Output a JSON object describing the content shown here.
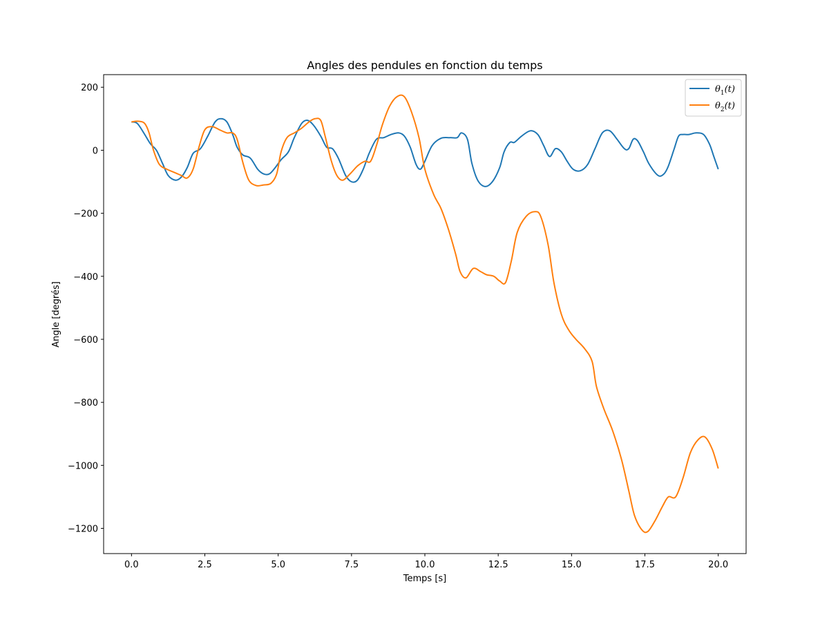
{
  "chart_data": {
    "type": "line",
    "title": "Angles des pendules en fonction du temps",
    "xlabel": "Temps [s]",
    "ylabel": "Angle [degrés]",
    "xlim": [
      -0.95,
      20.95
    ],
    "ylim": [
      -1280,
      240
    ],
    "x_ticks": [
      0.0,
      2.5,
      5.0,
      7.5,
      10.0,
      12.5,
      15.0,
      17.5,
      20.0
    ],
    "x_tick_labels": [
      "0.0",
      "2.5",
      "5.0",
      "7.5",
      "10.0",
      "12.5",
      "15.0",
      "17.5",
      "20.0"
    ],
    "y_ticks": [
      200,
      0,
      -200,
      -400,
      -600,
      -800,
      -1000,
      -1200
    ],
    "y_tick_labels": [
      "200",
      "0",
      "−200",
      "−400",
      "−600",
      "−800",
      "−1000",
      "−1200"
    ],
    "grid": false,
    "legend": {
      "placement": "top-right"
    },
    "series": [
      {
        "name": "θ1(t)",
        "name_main": "θ",
        "name_sub": "1",
        "name_suffix": "(t)",
        "color": "#1f77b4",
        "points": [
          [
            0.0,
            90
          ],
          [
            0.2,
            85
          ],
          [
            0.45,
            50
          ],
          [
            0.65,
            20
          ],
          [
            0.85,
            0
          ],
          [
            1.05,
            -40
          ],
          [
            1.25,
            -80
          ],
          [
            1.5,
            -95
          ],
          [
            1.7,
            -85
          ],
          [
            1.9,
            -55
          ],
          [
            2.1,
            -10
          ],
          [
            2.35,
            5
          ],
          [
            2.6,
            45
          ],
          [
            2.85,
            90
          ],
          [
            3.05,
            100
          ],
          [
            3.25,
            90
          ],
          [
            3.45,
            50
          ],
          [
            3.6,
            10
          ],
          [
            3.8,
            -15
          ],
          [
            4.05,
            -25
          ],
          [
            4.3,
            -60
          ],
          [
            4.5,
            -75
          ],
          [
            4.7,
            -75
          ],
          [
            4.9,
            -55
          ],
          [
            5.1,
            -30
          ],
          [
            5.35,
            -5
          ],
          [
            5.55,
            40
          ],
          [
            5.8,
            85
          ],
          [
            6.0,
            95
          ],
          [
            6.2,
            80
          ],
          [
            6.45,
            45
          ],
          [
            6.65,
            10
          ],
          [
            6.85,
            5
          ],
          [
            7.05,
            -25
          ],
          [
            7.3,
            -80
          ],
          [
            7.5,
            -100
          ],
          [
            7.7,
            -95
          ],
          [
            7.9,
            -60
          ],
          [
            8.1,
            -10
          ],
          [
            8.35,
            35
          ],
          [
            8.6,
            40
          ],
          [
            8.85,
            50
          ],
          [
            9.1,
            55
          ],
          [
            9.3,
            45
          ],
          [
            9.5,
            10
          ],
          [
            9.7,
            -45
          ],
          [
            9.85,
            -60
          ],
          [
            10.0,
            -35
          ],
          [
            10.25,
            15
          ],
          [
            10.55,
            38
          ],
          [
            10.85,
            40
          ],
          [
            11.1,
            40
          ],
          [
            11.25,
            55
          ],
          [
            11.45,
            35
          ],
          [
            11.6,
            -40
          ],
          [
            11.8,
            -95
          ],
          [
            12.05,
            -115
          ],
          [
            12.3,
            -100
          ],
          [
            12.55,
            -55
          ],
          [
            12.7,
            -5
          ],
          [
            12.9,
            25
          ],
          [
            13.05,
            25
          ],
          [
            13.3,
            45
          ],
          [
            13.6,
            62
          ],
          [
            13.85,
            50
          ],
          [
            14.05,
            15
          ],
          [
            14.25,
            -20
          ],
          [
            14.45,
            5
          ],
          [
            14.65,
            -5
          ],
          [
            14.85,
            -35
          ],
          [
            15.05,
            -60
          ],
          [
            15.3,
            -65
          ],
          [
            15.55,
            -45
          ],
          [
            15.8,
            5
          ],
          [
            16.05,
            55
          ],
          [
            16.3,
            62
          ],
          [
            16.55,
            35
          ],
          [
            16.8,
            5
          ],
          [
            16.95,
            5
          ],
          [
            17.1,
            35
          ],
          [
            17.25,
            30
          ],
          [
            17.45,
            -5
          ],
          [
            17.65,
            -45
          ],
          [
            17.95,
            -80
          ],
          [
            18.15,
            -75
          ],
          [
            18.3,
            -50
          ],
          [
            18.5,
            5
          ],
          [
            18.65,
            45
          ],
          [
            18.8,
            50
          ],
          [
            19.0,
            50
          ],
          [
            19.25,
            55
          ],
          [
            19.5,
            50
          ],
          [
            19.7,
            20
          ],
          [
            19.85,
            -20
          ],
          [
            20.0,
            -60
          ]
        ]
      },
      {
        "name": "θ2(t)",
        "name_main": "θ",
        "name_sub": "2",
        "name_suffix": "(t)",
        "color": "#ff7f0e",
        "points": [
          [
            0.0,
            90
          ],
          [
            0.25,
            92
          ],
          [
            0.45,
            85
          ],
          [
            0.6,
            55
          ],
          [
            0.75,
            0
          ],
          [
            0.95,
            -45
          ],
          [
            1.2,
            -60
          ],
          [
            1.45,
            -70
          ],
          [
            1.7,
            -80
          ],
          [
            1.9,
            -88
          ],
          [
            2.1,
            -60
          ],
          [
            2.3,
            10
          ],
          [
            2.5,
            65
          ],
          [
            2.75,
            75
          ],
          [
            3.0,
            65
          ],
          [
            3.25,
            55
          ],
          [
            3.45,
            55
          ],
          [
            3.6,
            35
          ],
          [
            3.8,
            -40
          ],
          [
            4.0,
            -95
          ],
          [
            4.25,
            -112
          ],
          [
            4.5,
            -110
          ],
          [
            4.75,
            -105
          ],
          [
            4.95,
            -75
          ],
          [
            5.1,
            -5
          ],
          [
            5.3,
            40
          ],
          [
            5.55,
            55
          ],
          [
            5.8,
            70
          ],
          [
            6.05,
            90
          ],
          [
            6.25,
            100
          ],
          [
            6.45,
            95
          ],
          [
            6.6,
            45
          ],
          [
            6.8,
            -30
          ],
          [
            7.0,
            -80
          ],
          [
            7.2,
            -95
          ],
          [
            7.45,
            -75
          ],
          [
            7.7,
            -50
          ],
          [
            7.95,
            -35
          ],
          [
            8.15,
            -35
          ],
          [
            8.35,
            15
          ],
          [
            8.55,
            80
          ],
          [
            8.8,
            140
          ],
          [
            9.05,
            170
          ],
          [
            9.3,
            170
          ],
          [
            9.55,
            120
          ],
          [
            9.8,
            40
          ],
          [
            10.0,
            -60
          ],
          [
            10.3,
            -140
          ],
          [
            10.55,
            -185
          ],
          [
            10.8,
            -250
          ],
          [
            11.05,
            -330
          ],
          [
            11.2,
            -385
          ],
          [
            11.4,
            -405
          ],
          [
            11.65,
            -375
          ],
          [
            11.9,
            -385
          ],
          [
            12.1,
            -395
          ],
          [
            12.35,
            -400
          ],
          [
            12.55,
            -415
          ],
          [
            12.75,
            -420
          ],
          [
            12.95,
            -350
          ],
          [
            13.15,
            -260
          ],
          [
            13.45,
            -210
          ],
          [
            13.75,
            -195
          ],
          [
            13.95,
            -210
          ],
          [
            14.2,
            -300
          ],
          [
            14.4,
            -420
          ],
          [
            14.65,
            -520
          ],
          [
            14.9,
            -570
          ],
          [
            15.15,
            -600
          ],
          [
            15.45,
            -630
          ],
          [
            15.7,
            -670
          ],
          [
            15.85,
            -750
          ],
          [
            16.1,
            -820
          ],
          [
            16.4,
            -890
          ],
          [
            16.7,
            -980
          ],
          [
            16.95,
            -1080
          ],
          [
            17.15,
            -1160
          ],
          [
            17.4,
            -1205
          ],
          [
            17.6,
            -1210
          ],
          [
            17.85,
            -1175
          ],
          [
            18.1,
            -1130
          ],
          [
            18.3,
            -1100
          ],
          [
            18.55,
            -1100
          ],
          [
            18.8,
            -1040
          ],
          [
            19.05,
            -960
          ],
          [
            19.3,
            -920
          ],
          [
            19.55,
            -910
          ],
          [
            19.8,
            -950
          ],
          [
            20.0,
            -1010
          ]
        ]
      }
    ]
  }
}
